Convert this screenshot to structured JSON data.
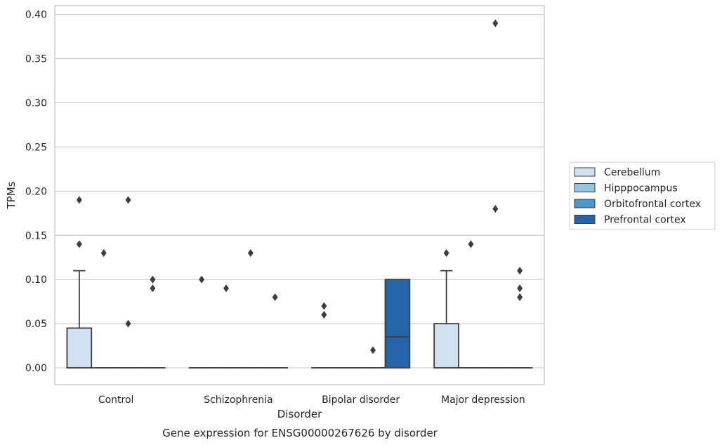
{
  "chart_data": {
    "type": "box",
    "caption": "Gene expression for ENSG00000267626 by disorder",
    "xlabel": "Disorder",
    "ylabel": "TPMs",
    "ylim": [
      -0.019,
      0.41
    ],
    "yticks": [
      "0.00",
      "0.05",
      "0.10",
      "0.15",
      "0.20",
      "0.25",
      "0.30",
      "0.35",
      "0.40"
    ],
    "grid": "horizontal",
    "legend_position": "right",
    "categories": [
      "Control",
      "Schizophrenia",
      "Bipolar disorder",
      "Major depression"
    ],
    "series": [
      {
        "name": "Cerebellum",
        "color": "#d0e1f2",
        "boxes": [
          {
            "q1": 0.0,
            "median": 0.0,
            "q3": 0.045,
            "whisker_low": 0.0,
            "whisker_high": 0.11,
            "outliers": [
              0.19,
              0.14
            ]
          },
          {
            "q1": 0.0,
            "median": 0.0,
            "q3": 0.0,
            "whisker_low": 0.0,
            "whisker_high": 0.0,
            "outliers": [
              0.1
            ]
          },
          {
            "q1": 0.0,
            "median": 0.0,
            "q3": 0.0,
            "whisker_low": 0.0,
            "whisker_high": 0.0,
            "outliers": [
              0.07,
              0.06
            ]
          },
          {
            "q1": 0.0,
            "median": 0.0,
            "q3": 0.05,
            "whisker_low": 0.0,
            "whisker_high": 0.11,
            "outliers": [
              0.13
            ]
          }
        ]
      },
      {
        "name": "Hipppocampus",
        "color": "#94c4df",
        "boxes": [
          {
            "q1": 0.0,
            "median": 0.0,
            "q3": 0.0,
            "whisker_low": 0.0,
            "whisker_high": 0.0,
            "outliers": [
              0.13
            ]
          },
          {
            "q1": 0.0,
            "median": 0.0,
            "q3": 0.0,
            "whisker_low": 0.0,
            "whisker_high": 0.0,
            "outliers": [
              0.09
            ]
          },
          {
            "q1": 0.0,
            "median": 0.0,
            "q3": 0.0,
            "whisker_low": 0.0,
            "whisker_high": 0.0,
            "outliers": []
          },
          {
            "q1": 0.0,
            "median": 0.0,
            "q3": 0.0,
            "whisker_low": 0.0,
            "whisker_high": 0.0,
            "outliers": [
              0.14
            ]
          }
        ]
      },
      {
        "name": "Orbitofrontal cortex",
        "color": "#4a98c9",
        "boxes": [
          {
            "q1": 0.0,
            "median": 0.0,
            "q3": 0.0,
            "whisker_low": 0.0,
            "whisker_high": 0.0,
            "outliers": [
              0.19,
              0.05
            ]
          },
          {
            "q1": 0.0,
            "median": 0.0,
            "q3": 0.0,
            "whisker_low": 0.0,
            "whisker_high": 0.0,
            "outliers": [
              0.13
            ]
          },
          {
            "q1": 0.0,
            "median": 0.0,
            "q3": 0.0,
            "whisker_low": 0.0,
            "whisker_high": 0.0,
            "outliers": [
              0.02
            ]
          },
          {
            "q1": 0.0,
            "median": 0.0,
            "q3": 0.0,
            "whisker_low": 0.0,
            "whisker_high": 0.0,
            "outliers": [
              0.39,
              0.18
            ]
          }
        ]
      },
      {
        "name": "Prefrontal cortex",
        "color": "#2464a8",
        "boxes": [
          {
            "q1": 0.0,
            "median": 0.0,
            "q3": 0.0,
            "whisker_low": 0.0,
            "whisker_high": 0.0,
            "outliers": [
              0.1,
              0.09
            ]
          },
          {
            "q1": 0.0,
            "median": 0.0,
            "q3": 0.0,
            "whisker_low": 0.0,
            "whisker_high": 0.0,
            "outliers": [
              0.08
            ]
          },
          {
            "q1": 0.0,
            "median": 0.035,
            "q3": 0.1,
            "whisker_low": 0.0,
            "whisker_high": 0.1,
            "outliers": []
          },
          {
            "q1": 0.0,
            "median": 0.0,
            "q3": 0.0,
            "whisker_low": 0.0,
            "whisker_high": 0.0,
            "outliers": [
              0.11,
              0.09,
              0.08
            ]
          }
        ]
      }
    ]
  }
}
